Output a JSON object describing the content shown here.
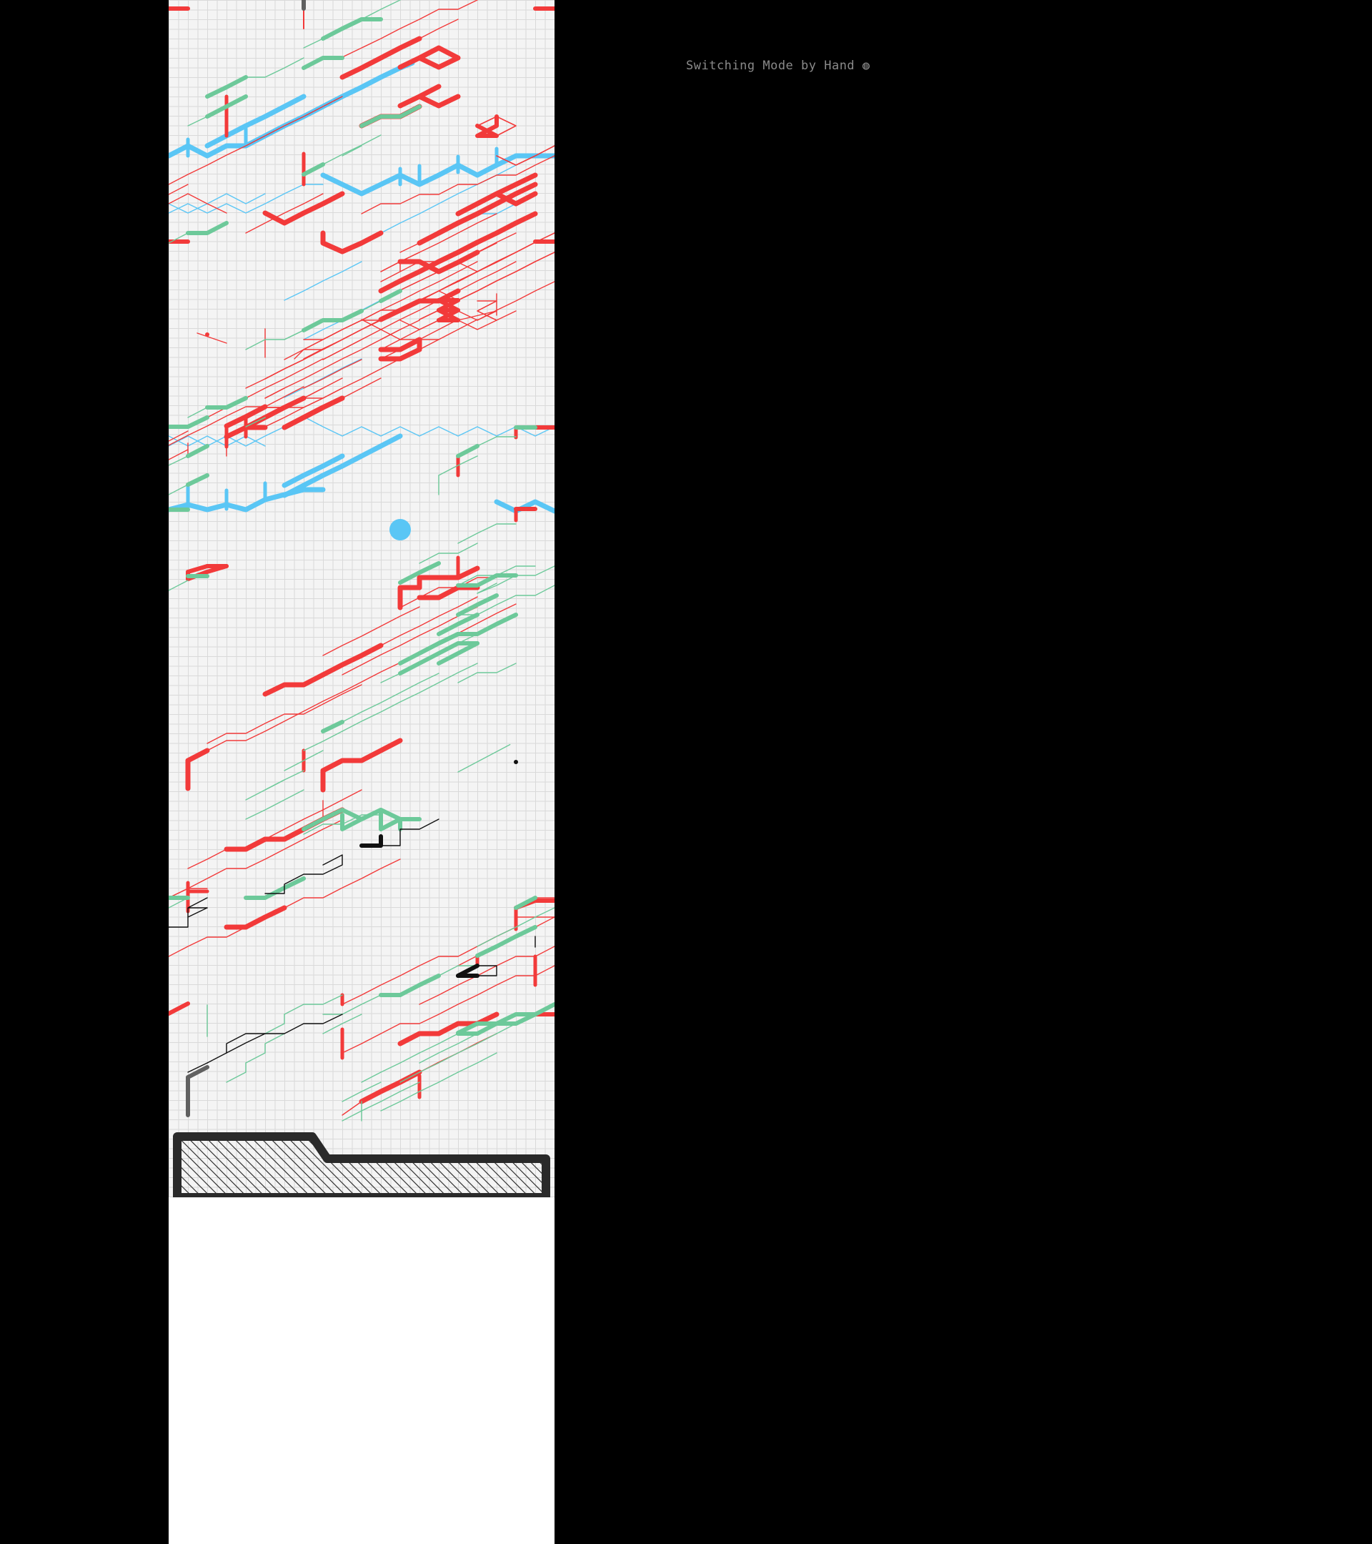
{
  "header": {
    "mode_label": "Switching Mode by Hand ◍"
  },
  "colors": {
    "background": "#000000",
    "playfield": "#f4f4f4",
    "grid_line": "#d9d9d9",
    "red_lane": "#f23a3a",
    "green_lane": "#6dc99a",
    "blue_lane": "#5ac6f5",
    "black_lane": "#111111",
    "judge_frame": "#2a2a2a",
    "cursor": "#5ac6f5"
  },
  "game": {
    "cursor_icon": "blue-dot-cursor-icon",
    "judge_zone_icon": "hatched-judgement-zone-icon"
  }
}
